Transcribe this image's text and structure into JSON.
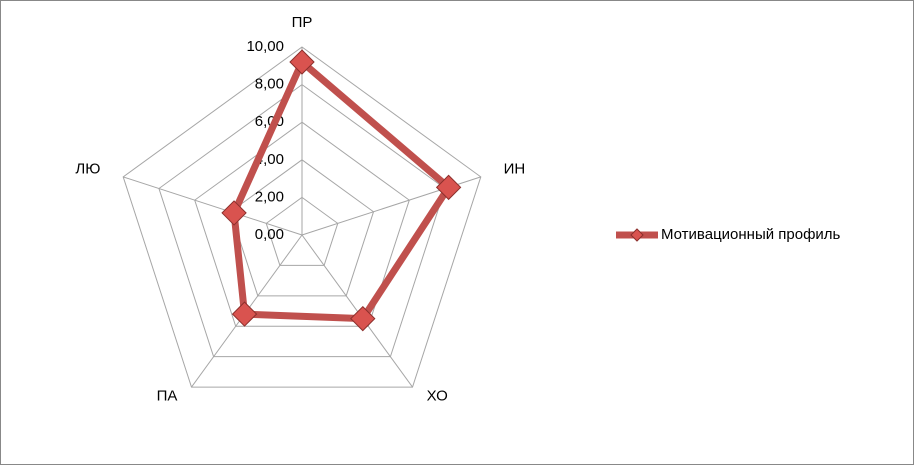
{
  "chart_data": {
    "type": "radar",
    "categories": [
      "ПР",
      "ИН",
      "ХО",
      "ПА",
      "ЛЮ"
    ],
    "series": [
      {
        "name": "Мотивационный профиль",
        "color": "#c0504d",
        "values": [
          9.2,
          8.2,
          5.5,
          5.2,
          3.8
        ]
      }
    ],
    "ylim": [
      0,
      10
    ],
    "yticks": [
      {
        "value": 0,
        "label": "0,00"
      },
      {
        "value": 2,
        "label": "2,00"
      },
      {
        "value": 4,
        "label": "4,00"
      },
      {
        "value": 6,
        "label": "6,00"
      },
      {
        "value": 8,
        "label": "8,00"
      },
      {
        "value": 10,
        "label": "10,00"
      }
    ],
    "grid": true,
    "legend": "right"
  }
}
